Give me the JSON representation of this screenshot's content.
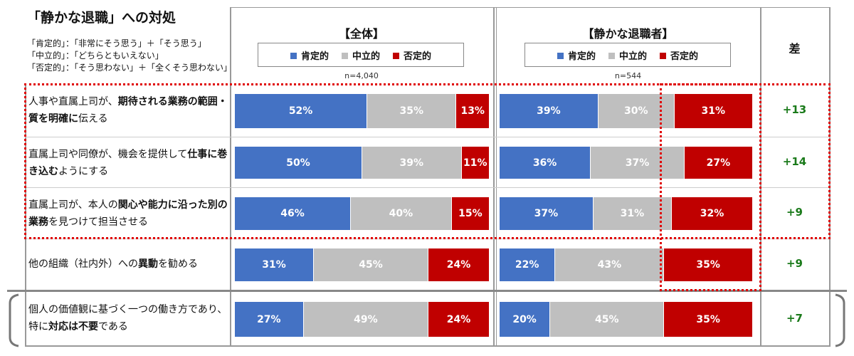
{
  "title": "「静かな退職」への対処",
  "definitions": [
    "「肯定的」：「非常にそう思う」＋「そう思う」",
    "「中立的」：「どちらともいえない」",
    "「否定的」：「そう思わない」＋「全くそう思わない」"
  ],
  "colors": {
    "positive": "#4472c4",
    "neutral": "#bfbfbf",
    "negative": "#c00000",
    "diff": "#1a7a1a"
  },
  "chart_data": {
    "type": "bar",
    "stacked": true,
    "orientation": "horizontal",
    "legend": [
      "肯定的",
      "中立的",
      "否定的"
    ],
    "panels": [
      {
        "title": "【全体】",
        "n": "n=4,040"
      },
      {
        "title": "【静かな退職者】",
        "n": "n=544"
      }
    ],
    "diff_header": "差",
    "categories": [
      [
        {
          "t": "人事や直属上司が、",
          "b": false
        },
        {
          "t": "期待される業務の範囲・質を明確に",
          "b": true
        },
        {
          "t": "伝える",
          "b": false
        }
      ],
      [
        {
          "t": "直属上司や同僚が、機会を提供して",
          "b": false
        },
        {
          "t": "仕事に巻き込む",
          "b": true
        },
        {
          "t": "ようにする",
          "b": false
        }
      ],
      [
        {
          "t": "直属上司が、本人の",
          "b": false
        },
        {
          "t": "関心や能力に沿った別の業務",
          "b": true
        },
        {
          "t": "を見つけて担当させる",
          "b": false
        }
      ],
      [
        {
          "t": "他の組織（社内外）への",
          "b": false
        },
        {
          "t": "異動",
          "b": true
        },
        {
          "t": "を勧める",
          "b": false
        }
      ],
      [
        {
          "t": "個人の価値観に基づく一つの働き方であり、特に",
          "b": false
        },
        {
          "t": "対応は不要",
          "b": true
        },
        {
          "t": "である",
          "b": false
        }
      ]
    ],
    "series": [
      {
        "panel": "【全体】",
        "values": [
          [
            52,
            35,
            13
          ],
          [
            50,
            39,
            11
          ],
          [
            46,
            40,
            15
          ],
          [
            31,
            45,
            24
          ],
          [
            27,
            49,
            24
          ]
        ]
      },
      {
        "panel": "【静かな退職者】",
        "values": [
          [
            39,
            30,
            31
          ],
          [
            36,
            37,
            27
          ],
          [
            37,
            31,
            32
          ],
          [
            22,
            43,
            35
          ],
          [
            20,
            45,
            35
          ]
        ]
      }
    ],
    "diff": [
      "+13",
      "+14",
      "+9",
      "+9",
      "+7"
    ],
    "unit": "%"
  }
}
